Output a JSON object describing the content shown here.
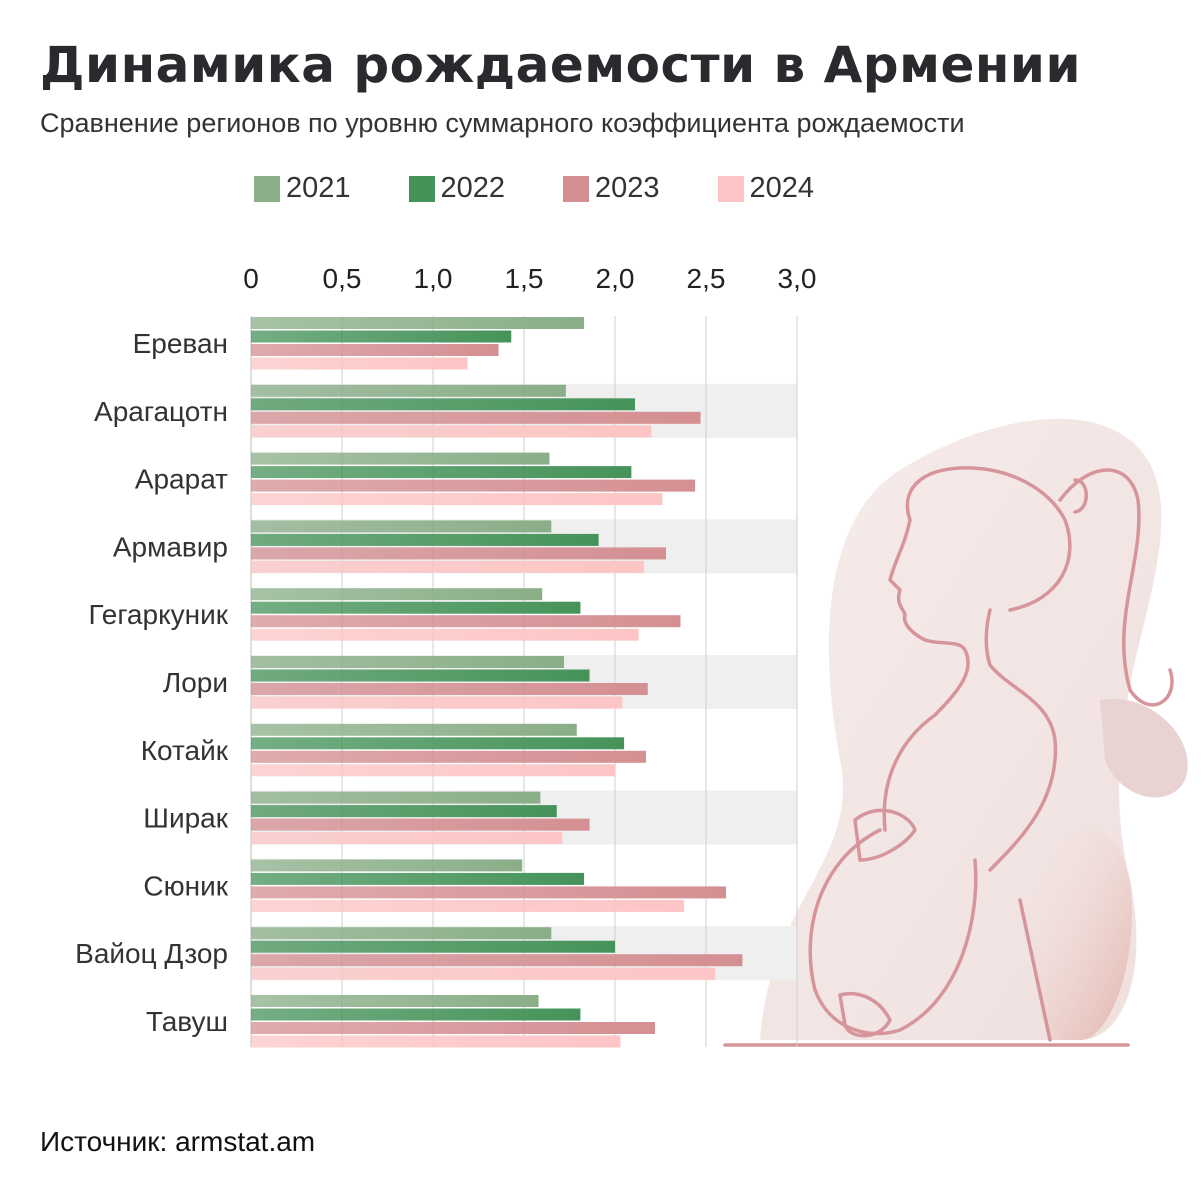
{
  "title": "Динамика рождаемости в Армении",
  "subtitle": "Сравнение регионов по уровню суммарного коэффициента рождаемости",
  "source": "Источник: armstat.am",
  "chart_data": {
    "type": "bar",
    "orientation": "horizontal",
    "categories": [
      "Ереван",
      "Арагацотн",
      "Арарат",
      "Армавир",
      "Гегаркуник",
      "Лори",
      "Котайк",
      "Ширак",
      "Сюник",
      "Вайоц Дзор",
      "Тавуш"
    ],
    "series": [
      {
        "name": "2021",
        "color": "#8aae88",
        "values": [
          1.83,
          1.73,
          1.64,
          1.65,
          1.6,
          1.72,
          1.79,
          1.59,
          1.49,
          1.65,
          1.58
        ]
      },
      {
        "name": "2022",
        "color": "#46935a",
        "values": [
          1.43,
          2.11,
          2.09,
          1.91,
          1.81,
          1.86,
          2.05,
          1.68,
          1.83,
          2.0,
          1.81
        ]
      },
      {
        "name": "2023",
        "color": "#d48f92",
        "values": [
          1.36,
          2.47,
          2.44,
          2.28,
          2.36,
          2.18,
          2.17,
          1.86,
          2.61,
          2.7,
          2.22
        ]
      },
      {
        "name": "2024",
        "color": "#fdc5c5",
        "values": [
          1.19,
          2.2,
          2.26,
          2.16,
          2.13,
          2.04,
          2.0,
          1.71,
          2.38,
          2.55,
          2.03
        ]
      }
    ],
    "xlim": [
      0,
      3.0
    ],
    "xticks": [
      "0",
      "0,5",
      "1,0",
      "1,5",
      "2,0",
      "2,5",
      "3,0"
    ],
    "axis_position": "top",
    "grid": true,
    "legend_position": "top"
  }
}
